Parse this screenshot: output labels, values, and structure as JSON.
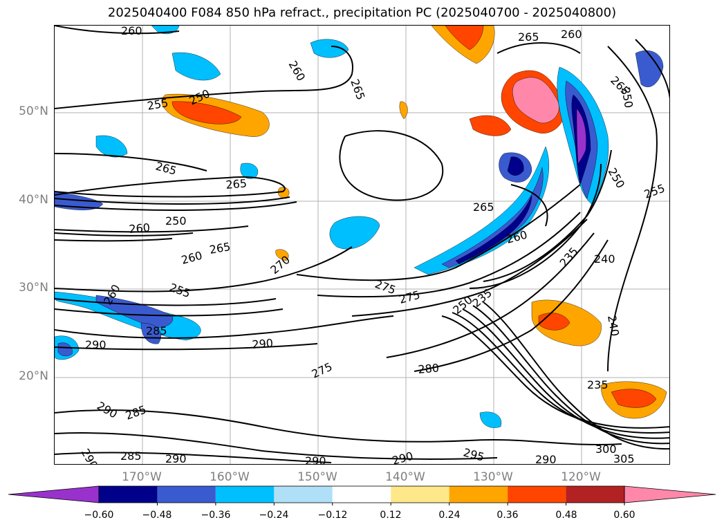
{
  "title": "2025040400 F084 850 hPa refract., precipitation PC (2025040700 - 2025040800)",
  "lat_labels": [
    "50°N",
    "40°N",
    "30°N",
    "20°N"
  ],
  "lon_labels": [
    "170°W",
    "160°W",
    "150°W",
    "140°W",
    "130°W",
    "120°W"
  ],
  "colorbar": {
    "ticks": [
      "−0.60",
      "−0.48",
      "−0.36",
      "−0.24",
      "−0.12",
      "0.12",
      "0.24",
      "0.36",
      "0.48",
      "0.60"
    ],
    "colors": [
      "#9932cc",
      "#00008b",
      "#3a5bd0",
      "#00bfff",
      "#b0e0f8",
      "#ffffff",
      "#ffe88a",
      "#ffa500",
      "#ff4500",
      "#b22222",
      "#ff88aa"
    ]
  },
  "contour_labels": [
    "260",
    "260",
    "265",
    "260",
    "250",
    "255",
    "265",
    "265",
    "265",
    "265",
    "260",
    "250",
    "250",
    "260",
    "265",
    "260",
    "270",
    "255",
    "260",
    "285",
    "290",
    "290",
    "275",
    "275",
    "275",
    "280",
    "235",
    "235",
    "240",
    "240",
    "235",
    "250",
    "250",
    "265",
    "255",
    "290",
    "285",
    "285",
    "290",
    "290",
    "290",
    "290",
    "295",
    "290",
    "290",
    "300",
    "305",
    "265",
    "260",
    "255"
  ]
}
